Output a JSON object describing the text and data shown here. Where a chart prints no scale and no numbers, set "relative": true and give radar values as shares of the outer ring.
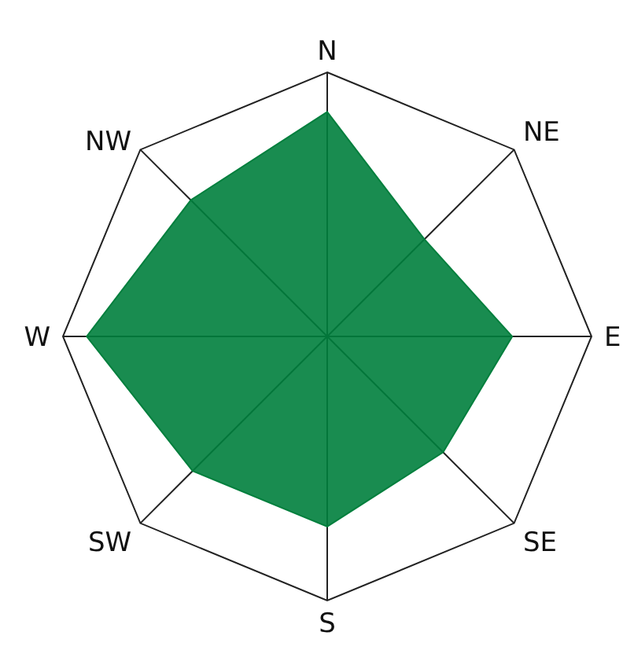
{
  "chart_data": {
    "type": "radar",
    "relative": true,
    "categories": [
      "N",
      "NE",
      "E",
      "SE",
      "S",
      "SW",
      "W",
      "NW"
    ],
    "series": [
      {
        "color": "#007f3d",
        "values": [
          0.85,
          0.52,
          0.7,
          0.62,
          0.72,
          0.72,
          0.91,
          0.73
        ]
      }
    ]
  }
}
